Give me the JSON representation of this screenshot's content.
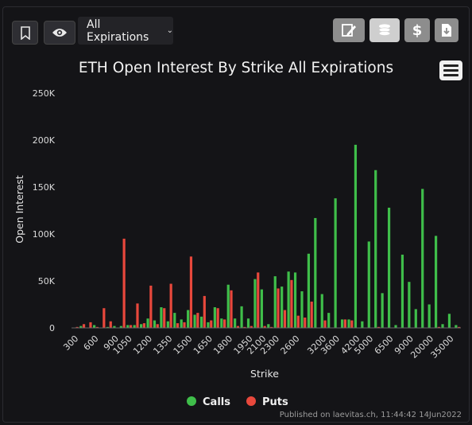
{
  "toolbar": {
    "bookmark_icon": "bookmark-icon",
    "eye_icon": "eye-icon",
    "expiration_select": "All Expirations",
    "right_icons": [
      "edit-icon",
      "coins-icon",
      "dollar-icon",
      "download-icon"
    ]
  },
  "footer": {
    "published": "Published on laevitas.ch, 11:44:42 14Jun2022"
  },
  "colors": {
    "calls": "#3fbe4a",
    "puts": "#e8483c",
    "background": "#141417"
  },
  "chart_data": {
    "type": "bar",
    "title": "ETH Open Interest By Strike All Expirations",
    "xlabel": "Strike",
    "ylabel": "Open Interest",
    "ylim": [
      0,
      250000
    ],
    "yticks": [
      "0",
      "50K",
      "100K",
      "150K",
      "200K",
      "250K"
    ],
    "categories": [
      "300",
      "400",
      "500",
      "600",
      "700",
      "800",
      "900",
      "1000",
      "1050",
      "1100",
      "1150",
      "1200",
      "1250",
      "1300",
      "1350",
      "1400",
      "1450",
      "1500",
      "1550",
      "1600",
      "1650",
      "1700",
      "1750",
      "1800",
      "1850",
      "1900",
      "1950",
      "2000",
      "2100",
      "2200",
      "2300",
      "2400",
      "2500",
      "2600",
      "2700",
      "2800",
      "3000",
      "3200",
      "3400",
      "3600",
      "3800",
      "4000",
      "4200",
      "4500",
      "5000",
      "5500",
      "6000",
      "6500",
      "7000",
      "8000",
      "9000",
      "10000",
      "15000",
      "20000",
      "25000",
      "30000",
      "35000",
      "40000"
    ],
    "xtick_labels": [
      "300",
      "600",
      "900",
      "1050",
      "1200",
      "1350",
      "1500",
      "1650",
      "1800",
      "1950",
      "2100",
      "2300",
      "2600",
      "3200",
      "3600",
      "4200",
      "5000",
      "6500",
      "9000",
      "20000",
      "35000"
    ],
    "series": [
      {
        "name": "Calls",
        "values": [
          0,
          2000,
          0,
          3000,
          0,
          1000,
          2000,
          2000,
          3000,
          3000,
          4000,
          10000,
          8000,
          22000,
          7000,
          16000,
          9000,
          19000,
          14000,
          12000,
          6000,
          22000,
          10000,
          46000,
          10000,
          23000,
          10000,
          52000,
          41000,
          4000,
          55000,
          44000,
          60000,
          59000,
          39000,
          79000,
          117000,
          36000,
          16000,
          138000,
          9000,
          9000,
          195000,
          7000,
          92000,
          168000,
          37000,
          128000,
          3000,
          78000,
          49000,
          20000,
          148000,
          25000,
          98000,
          4000,
          15000,
          3000
        ]
      },
      {
        "name": "Puts",
        "values": [
          1000,
          4000,
          6000,
          1000,
          21000,
          7000,
          0,
          95000,
          3000,
          26000,
          5000,
          45000,
          4000,
          21000,
          47000,
          5000,
          6000,
          76000,
          16000,
          34000,
          8000,
          21000,
          9000,
          40000,
          2000,
          1000,
          2000,
          59000,
          2000,
          1000,
          42000,
          19000,
          51000,
          13000,
          11000,
          28000,
          0,
          8000,
          0,
          0,
          9000,
          8000,
          0,
          0,
          0,
          1000,
          0,
          0,
          0,
          0,
          0,
          0,
          0,
          0,
          1000,
          0,
          0,
          1000
        ]
      }
    ],
    "legend": {
      "placement": "bottom-center",
      "entries": [
        "Calls",
        "Puts"
      ]
    }
  }
}
